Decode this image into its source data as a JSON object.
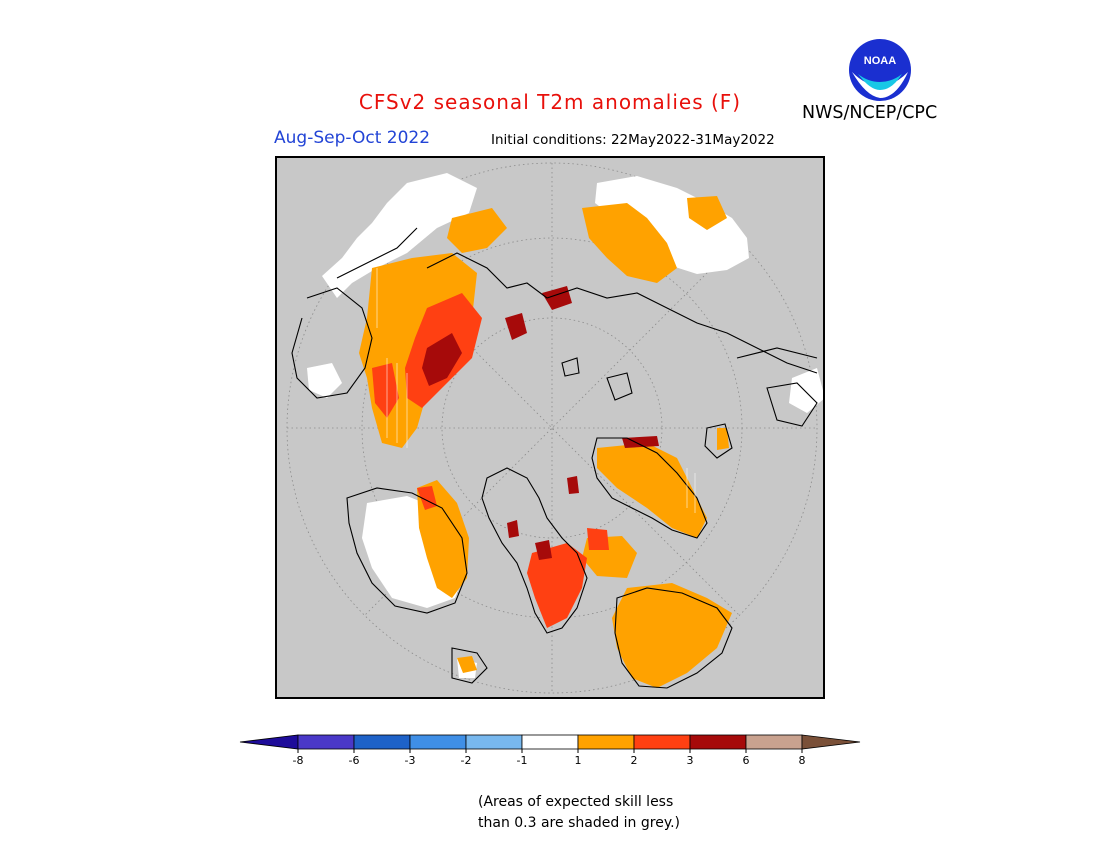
{
  "header": {
    "title": "CFSv2 seasonal T2m anomalies (F)",
    "period": "Aug-Sep-Oct 2022",
    "initial_conditions": "Initial conditions: 22May2022-31May2022",
    "agency": "NWS/NCEP/CPC",
    "logo_text": "NOAA"
  },
  "colors": {
    "map_background": "#c8c8c8",
    "coast": "#000000",
    "grid": "#8a8a8a",
    "title": "#e8100b",
    "period": "#2244d6"
  },
  "legend": {
    "bins": [
      {
        "range": "< -8",
        "color": "#1e0c9a"
      },
      {
        "range": "-8 to -6",
        "color": "#4a38c8"
      },
      {
        "range": "-6 to -3",
        "color": "#1e62c8"
      },
      {
        "range": "-3 to -2",
        "color": "#3f8fe6"
      },
      {
        "range": "-2 to -1",
        "color": "#78b8ee"
      },
      {
        "range": "-1 to 1",
        "color": "#ffffff"
      },
      {
        "range": "1 to 2",
        "color": "#ffa200"
      },
      {
        "range": "2 to 3",
        "color": "#ff4012"
      },
      {
        "range": "3 to 6",
        "color": "#a60a0a"
      },
      {
        "range": "6 to 8",
        "color": "#c9a28f"
      },
      {
        "range": "> 8",
        "color": "#7a5038"
      }
    ],
    "tick_labels": [
      "-8",
      "-6",
      "-3",
      "-2",
      "-1",
      "1",
      "2",
      "3",
      "6",
      "8"
    ]
  },
  "footnote": {
    "line1": "(Areas of expected skill less",
    "line2": "than 0.3 are shaded in grey.)"
  }
}
